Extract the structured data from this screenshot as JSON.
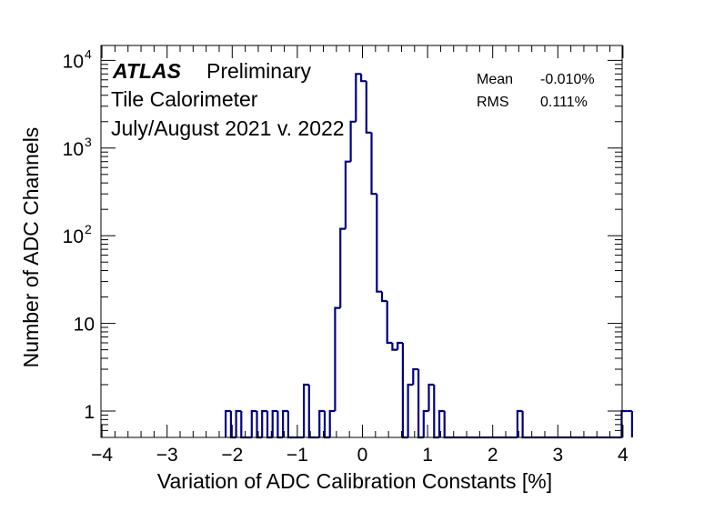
{
  "chart_data": {
    "type": "histogram",
    "title": "",
    "xlabel": "Variation of ADC Calibration Constants [%]",
    "ylabel": "Number of ADC Channels",
    "xlim": [
      -4,
      4
    ],
    "ylim": [
      0.5,
      12000
    ],
    "y_scale": "log",
    "x_ticks": [
      -4,
      -3,
      -2,
      -1,
      0,
      1,
      2,
      3,
      4
    ],
    "x_tick_labels": [
      "−4",
      "−3",
      "−2",
      "−1",
      "0",
      "1",
      "2",
      "3",
      "4"
    ],
    "y_ticks": [
      1,
      10,
      100,
      1000,
      10000
    ],
    "grid": false,
    "series_color": "#000080",
    "bin_width": 0.08,
    "bin_edges_start": -2.1,
    "counts": [
      1,
      0,
      1,
      0,
      0,
      1,
      0,
      1,
      0,
      1,
      0,
      1,
      0,
      0,
      0,
      2,
      0,
      0,
      1,
      0,
      1,
      15,
      120,
      700,
      2000,
      7000,
      5800,
      1500,
      300,
      23,
      18,
      6,
      5,
      6,
      0,
      2,
      3,
      0,
      1,
      2,
      0,
      1,
      0,
      0,
      0,
      0,
      0,
      0,
      0,
      0,
      0,
      0,
      0,
      0,
      0,
      0,
      1,
      0,
      0,
      0,
      0,
      0,
      0,
      0,
      0,
      0,
      0,
      0,
      0,
      0,
      0,
      0,
      0,
      0,
      0,
      0,
      1,
      1
    ]
  },
  "labels": {
    "atlas": "ATLAS",
    "preliminary": "Preliminary",
    "line2": "Tile Calorimeter",
    "line3": "July/August 2021 v. 2022"
  },
  "stats": {
    "mean_label": "Mean",
    "mean_value": "-0.010%",
    "rms_label": "RMS",
    "rms_value": "0.111%"
  }
}
